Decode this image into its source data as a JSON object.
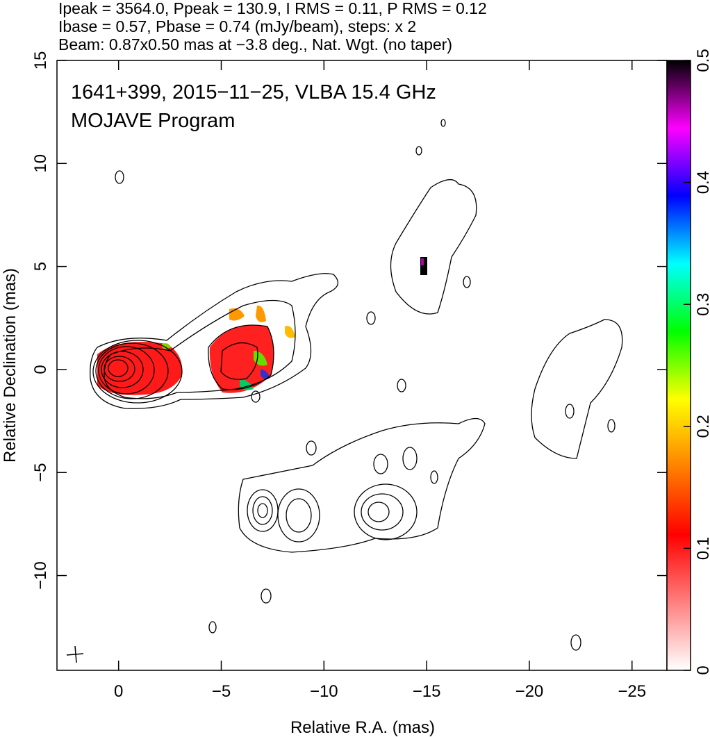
{
  "chart_data": {
    "type": "contour",
    "header": [
      "Ipeak = 3564.0, Ppeak = 130.9, I RMS = 0.11, P RMS = 0.12",
      "Ibase = 0.57, Pbase = 0.74 (mJy/beam), steps: x 2",
      "Beam: 0.87x0.50 mas at −3.8 deg., Nat. Wgt. (no taper)"
    ],
    "annotations": [
      "1641+399, 2015−11−25, VLBA 15.4 GHz",
      "MOJAVE Program"
    ],
    "xlabel": "Relative R.A. (mas)",
    "ylabel": "Relative Declination (mas)",
    "xlim": [
      3,
      -26.7
    ],
    "ylim": [
      -14.6,
      15
    ],
    "xticks": [
      0,
      {
        "value": -5,
        "label": "−5"
      },
      {
        "value": -10,
        "label": "−10"
      },
      {
        "value": -15,
        "label": "−15"
      },
      {
        "value": -20,
        "label": "−20"
      },
      {
        "value": -25,
        "label": "−25"
      }
    ],
    "yticks": [
      {
        "value": -10,
        "label": "−10"
      },
      {
        "value": -5,
        "label": "−5"
      },
      0,
      5,
      10,
      15
    ],
    "colorbar": {
      "lim": [
        0,
        0.5
      ],
      "ticks": [
        0,
        0.1,
        0.2,
        0.3,
        0.4,
        0.5
      ],
      "colors": [
        "#ffffff",
        "#ff8080",
        "#ff0000",
        "#ff8000",
        "#ffff00",
        "#00ff00",
        "#00ffff",
        "#0000ff",
        "#ff00ff",
        "#000000"
      ]
    }
  }
}
